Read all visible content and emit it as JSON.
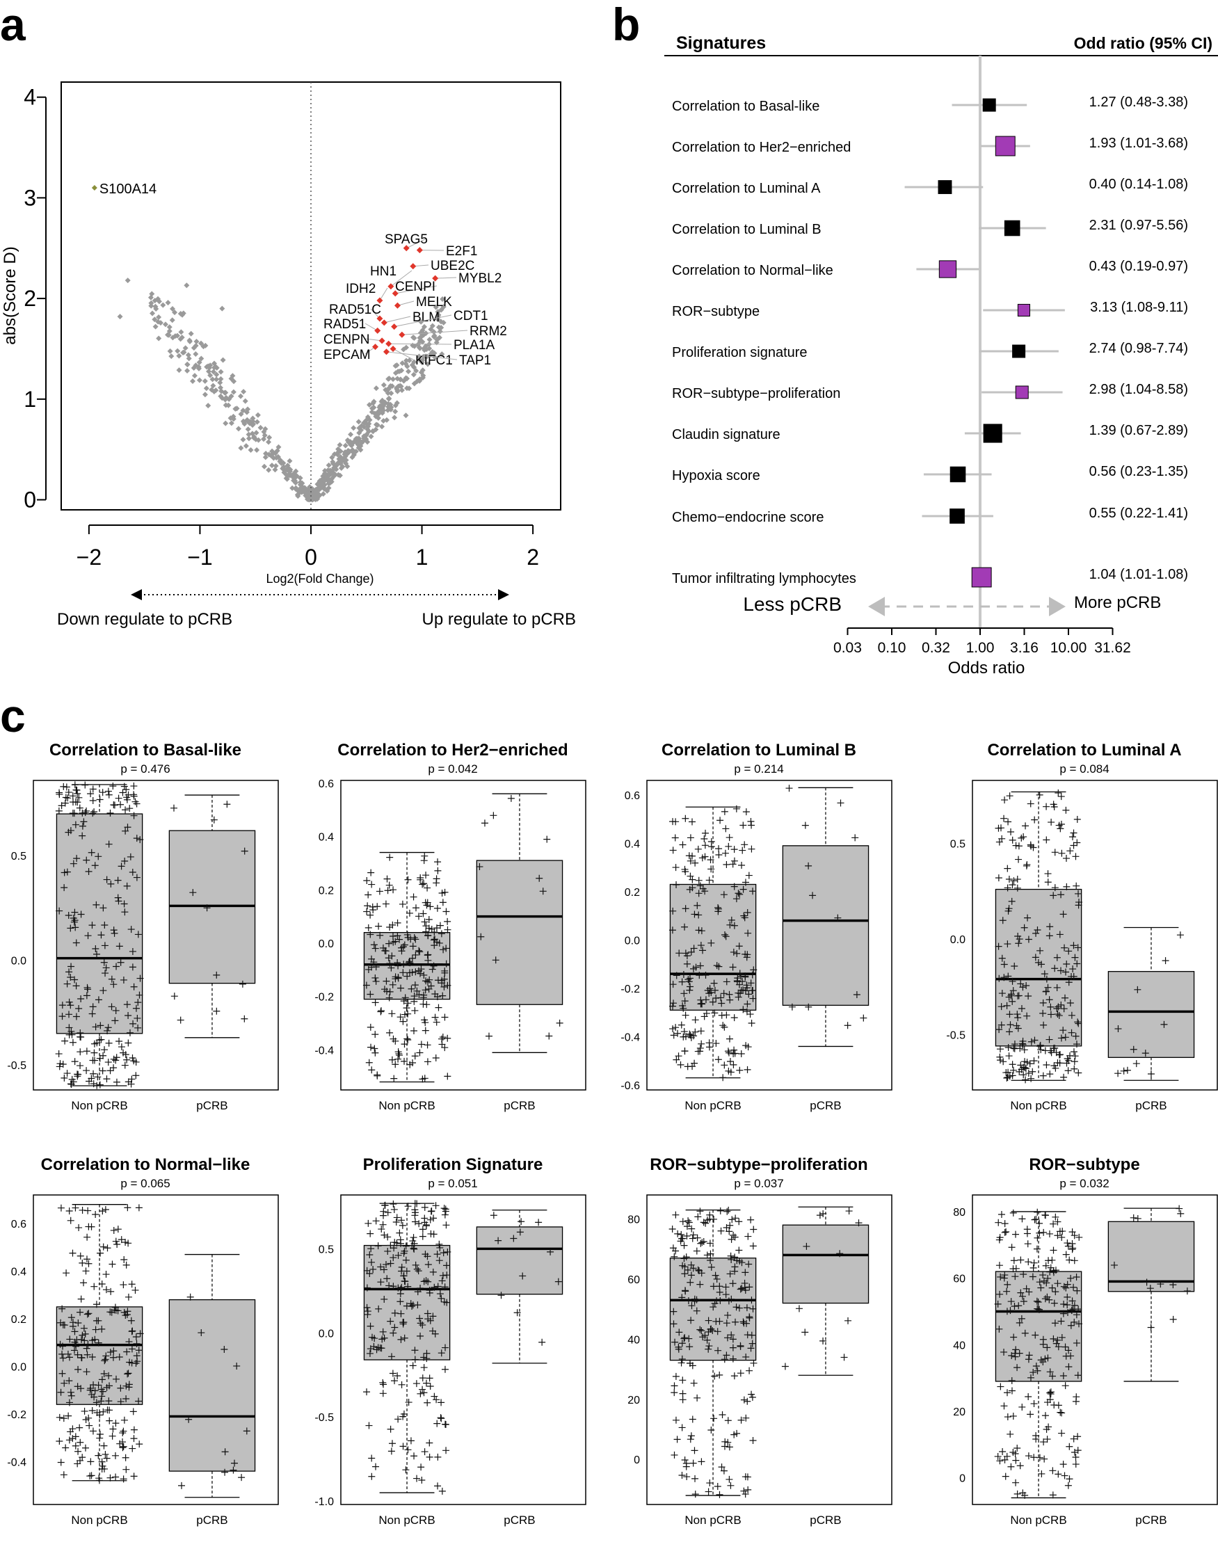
{
  "panel_labels": {
    "a": "a",
    "b": "b",
    "c": "c"
  },
  "colors": {
    "grey_point": "#9a9a9a",
    "red_point": "#e0362b",
    "green_point": "#8a8f3a",
    "purple": "#a23bb5",
    "box_fill": "#bfbfbf",
    "ci_line": "#c2c2c2"
  },
  "chart_data": [
    {
      "type": "scatter",
      "id": "volcano",
      "xlabel": "Log2(Fold Change)",
      "ylabel": "abs(Score D)",
      "xlim": [
        -2.25,
        2.25
      ],
      "ylim": [
        -0.1,
        4.15
      ],
      "xticks": [
        -2,
        -1,
        0,
        1,
        2
      ],
      "yticks": [
        0,
        1,
        2,
        3,
        4
      ],
      "annotations": {
        "down": "Down regulate to pCRB",
        "up": "Up regulate to pCRB"
      },
      "outlier": {
        "label": "S100A14",
        "x": -1.95,
        "y": 3.1
      },
      "labeled_genes": [
        {
          "label": "SPAG5",
          "x": 0.86,
          "y": 2.5
        },
        {
          "label": "E2F1",
          "x": 0.98,
          "y": 2.48
        },
        {
          "label": "UBE2C",
          "x": 0.92,
          "y": 2.32
        },
        {
          "label": "MYBL2",
          "x": 1.12,
          "y": 2.2
        },
        {
          "label": "HN1",
          "x": 0.72,
          "y": 2.12
        },
        {
          "label": "CENPI",
          "x": 0.76,
          "y": 2.05
        },
        {
          "label": "IDH2",
          "x": 0.62,
          "y": 1.98
        },
        {
          "label": "MELK",
          "x": 0.78,
          "y": 1.93
        },
        {
          "label": "RAD51C",
          "x": 0.62,
          "y": 1.8
        },
        {
          "label": "BLM",
          "x": 0.66,
          "y": 1.76
        },
        {
          "label": "CDT1",
          "x": 0.75,
          "y": 1.72
        },
        {
          "label": "RAD51",
          "x": 0.6,
          "y": 1.68
        },
        {
          "label": "RRM2",
          "x": 0.82,
          "y": 1.64
        },
        {
          "label": "CENPN",
          "x": 0.64,
          "y": 1.58
        },
        {
          "label": "PLA1A",
          "x": 0.7,
          "y": 1.55
        },
        {
          "label": "EPCAM",
          "x": 0.58,
          "y": 1.52
        },
        {
          "label": "KIFC1",
          "x": 0.74,
          "y": 1.5
        },
        {
          "label": "TAP1",
          "x": 0.68,
          "y": 1.47
        }
      ]
    },
    {
      "type": "forest",
      "id": "forest",
      "header_left": "Signatures",
      "header_right": "Odd ratio (95% CI)",
      "xlabel": "Odds ratio",
      "xticks": [
        "0.03",
        "0.10",
        "0.32",
        "1.00",
        "3.16",
        "10.00",
        "31.62"
      ],
      "less_label": "Less pCRB",
      "more_label": "More pCRB",
      "rows": [
        {
          "name": "Correlation to  Basal-like",
          "or": 1.27,
          "lo": 0.48,
          "hi": 3.38,
          "ci_text": "1.27 (0.48-3.38)",
          "color": "#000000",
          "size": 1.0
        },
        {
          "name": "Correlation to Her2−enriched",
          "or": 1.93,
          "lo": 1.01,
          "hi": 3.68,
          "ci_text": "1.93 (1.01-3.68)",
          "color": "#a23bb5",
          "size": 1.55
        },
        {
          "name": "Correlation to Luminal A",
          "or": 0.4,
          "lo": 0.14,
          "hi": 1.08,
          "ci_text": "0.40 (0.14-1.08)",
          "color": "#000000",
          "size": 1.05
        },
        {
          "name": "Correlation to Luminal B",
          "or": 2.31,
          "lo": 0.97,
          "hi": 5.56,
          "ci_text": "2.31 (0.97-5.56)",
          "color": "#000000",
          "size": 1.2
        },
        {
          "name": "Correlation to Normal−like",
          "or": 0.43,
          "lo": 0.19,
          "hi": 0.97,
          "ci_text": "0.43 (0.19-0.97)",
          "color": "#a23bb5",
          "size": 1.35
        },
        {
          "name": "ROR−subtype",
          "or": 3.13,
          "lo": 1.08,
          "hi": 9.11,
          "ci_text": "3.13 (1.08-9.11)",
          "color": "#a23bb5",
          "size": 0.95
        },
        {
          "name": "Proliferation signature",
          "or": 2.74,
          "lo": 0.98,
          "hi": 7.74,
          "ci_text": "2.74 (0.98-7.74)",
          "color": "#000000",
          "size": 1.0
        },
        {
          "name": "ROR−subtype−proliferation",
          "or": 2.98,
          "lo": 1.04,
          "hi": 8.58,
          "ci_text": "2.98 (1.04-8.58)",
          "color": "#a23bb5",
          "size": 1.0
        },
        {
          "name": "Claudin signature",
          "or": 1.39,
          "lo": 0.67,
          "hi": 2.89,
          "ci_text": "1.39 (0.67-2.89)",
          "color": "#000000",
          "size": 1.45
        },
        {
          "name": "Hypoxia score",
          "or": 0.56,
          "lo": 0.23,
          "hi": 1.35,
          "ci_text": "0.56 (0.23-1.35)",
          "color": "#000000",
          "size": 1.2
        },
        {
          "name": "Chemo−endocrine score",
          "or": 0.55,
          "lo": 0.22,
          "hi": 1.41,
          "ci_text": "0.55 (0.22-1.41)",
          "color": "#000000",
          "size": 1.15
        },
        {
          "name": "Tumor infiltrating lymphocytes",
          "or": 1.04,
          "lo": 1.01,
          "hi": 1.08,
          "ci_text": "1.04 (1.01-1.08)",
          "color": "#a23bb5",
          "size": 1.55
        }
      ]
    },
    {
      "type": "boxplot",
      "id": "boxplots",
      "group_labels": [
        "Non pCRB",
        "pCRB"
      ],
      "plots": [
        {
          "title": "Correlation to Basal-like",
          "p": "p = 0.476",
          "yticks": [
            "-0.5",
            "0.0",
            "0.5"
          ],
          "ytick_values": [
            -0.5,
            0.0,
            0.5
          ],
          "ylim": [
            -0.62,
            0.86
          ],
          "groups": [
            {
              "wlo": -0.6,
              "q1": -0.35,
              "med": 0.01,
              "q3": 0.7,
              "whi": 0.84,
              "n": 230
            },
            {
              "wlo": -0.37,
              "q1": -0.11,
              "med": 0.26,
              "q3": 0.62,
              "whi": 0.79,
              "n": 12
            }
          ]
        },
        {
          "title": "Correlation to Her2−enriched",
          "p": "p = 0.042",
          "yticks": [
            "-0.4",
            "-0.2",
            "0.0",
            "0.2",
            "0.4",
            "0.6"
          ],
          "ytick_values": [
            -0.4,
            -0.2,
            0.0,
            0.2,
            0.4,
            0.6
          ],
          "ylim": [
            -0.55,
            0.61
          ],
          "groups": [
            {
              "wlo": -0.52,
              "q1": -0.21,
              "med": -0.08,
              "q3": 0.04,
              "whi": 0.34,
              "n": 230
            },
            {
              "wlo": -0.41,
              "q1": -0.23,
              "med": 0.1,
              "q3": 0.31,
              "whi": 0.56,
              "n": 12
            }
          ]
        },
        {
          "title": "Correlation to Luminal B",
          "p": "p = 0.214",
          "yticks": [
            "-0.6",
            "-0.4",
            "-0.2",
            "0.0",
            "0.2",
            "0.4",
            "0.6"
          ],
          "ytick_values": [
            -0.6,
            -0.4,
            -0.2,
            0.0,
            0.2,
            0.4,
            0.6
          ],
          "ylim": [
            -0.62,
            0.66
          ],
          "groups": [
            {
              "wlo": -0.57,
              "q1": -0.29,
              "med": -0.14,
              "q3": 0.23,
              "whi": 0.55,
              "n": 230
            },
            {
              "wlo": -0.44,
              "q1": -0.27,
              "med": 0.08,
              "q3": 0.39,
              "whi": 0.63,
              "n": 12
            }
          ]
        },
        {
          "title": "Correlation to Luminal A",
          "p": "p = 0.084",
          "yticks": [
            "-0.5",
            "0.0",
            "0.5"
          ],
          "ytick_values": [
            -0.5,
            0.0,
            0.5
          ],
          "ylim": [
            -0.79,
            0.83
          ],
          "groups": [
            {
              "wlo": -0.74,
              "q1": -0.56,
              "med": -0.21,
              "q3": 0.26,
              "whi": 0.77,
              "n": 230
            },
            {
              "wlo": -0.74,
              "q1": -0.62,
              "med": -0.38,
              "q3": -0.17,
              "whi": 0.06,
              "n": 12
            }
          ]
        },
        {
          "title": "Correlation to Normal−like",
          "p": "p = 0.065",
          "yticks": [
            "-0.4",
            "-0.2",
            "0.0",
            "0.2",
            "0.4",
            "0.6"
          ],
          "ytick_values": [
            -0.4,
            -0.2,
            0.0,
            0.2,
            0.4,
            0.6
          ],
          "ylim": [
            -0.58,
            0.72
          ],
          "groups": [
            {
              "wlo": -0.48,
              "q1": -0.16,
              "med": 0.09,
              "q3": 0.25,
              "whi": 0.68,
              "n": 230
            },
            {
              "wlo": -0.55,
              "q1": -0.44,
              "med": -0.21,
              "q3": 0.28,
              "whi": 0.47,
              "n": 12
            }
          ]
        },
        {
          "title": "Proliferation Signature",
          "p": "p = 0.051",
          "yticks": [
            "-1.0",
            "-0.5",
            "0.0",
            "0.5"
          ],
          "ytick_values": [
            -1.0,
            -0.5,
            0.0,
            0.5
          ],
          "ylim": [
            -1.02,
            0.82
          ],
          "groups": [
            {
              "wlo": -0.95,
              "q1": -0.16,
              "med": 0.26,
              "q3": 0.52,
              "whi": 0.77,
              "n": 230
            },
            {
              "wlo": -0.18,
              "q1": 0.23,
              "med": 0.5,
              "q3": 0.63,
              "whi": 0.73,
              "n": 12
            }
          ]
        },
        {
          "title": "ROR−subtype−proliferation",
          "p": "p = 0.037",
          "yticks": [
            "0",
            "20",
            "40",
            "60",
            "80"
          ],
          "ytick_values": [
            0,
            20,
            40,
            60,
            80
          ],
          "ylim": [
            -15,
            88
          ],
          "groups": [
            {
              "wlo": -12,
              "q1": 33,
              "med": 53,
              "q3": 67,
              "whi": 83,
              "n": 230
            },
            {
              "wlo": 28,
              "q1": 52,
              "med": 68,
              "q3": 78,
              "whi": 84,
              "n": 12
            }
          ]
        },
        {
          "title": "ROR−subtype",
          "p": "p = 0.032",
          "yticks": [
            "0",
            "20",
            "40",
            "60",
            "80"
          ],
          "ytick_values": [
            0,
            20,
            40,
            60,
            80
          ],
          "ylim": [
            -8,
            85
          ],
          "groups": [
            {
              "wlo": -6,
              "q1": 29,
              "med": 50,
              "q3": 62,
              "whi": 80,
              "n": 230
            },
            {
              "wlo": 29,
              "q1": 56,
              "med": 59,
              "q3": 77,
              "whi": 81,
              "n": 12
            }
          ]
        }
      ]
    }
  ]
}
